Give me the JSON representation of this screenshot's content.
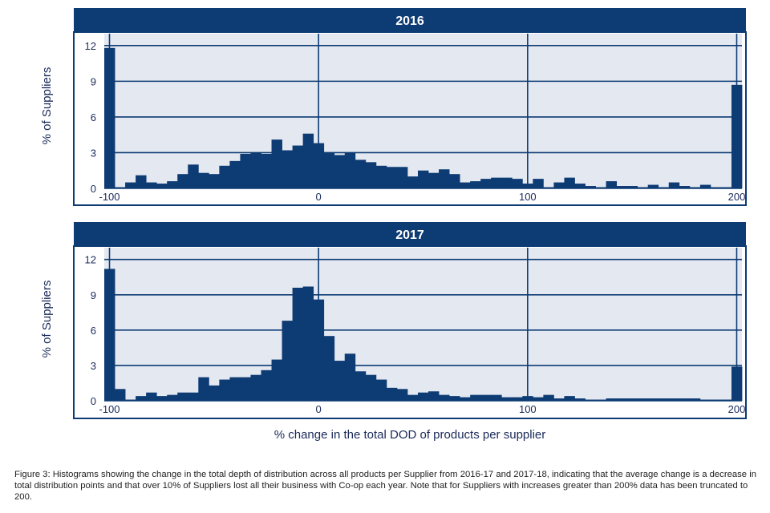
{
  "colors": {
    "bar": "#0d3b73",
    "title_bg": "#0d3b73",
    "plot_bg": "#e4e8f1",
    "grid": "#0d3b73",
    "text": "#1a2a5a"
  },
  "chart_data": [
    {
      "type": "bar",
      "title": "2016",
      "xlabel": "% change in the total DOD of products per supplier",
      "ylabel": "% of Suppliers",
      "xlim": [
        -102.5,
        202.5
      ],
      "ylim": [
        0,
        13
      ],
      "bin_width": 5,
      "xticks": [
        -100,
        0,
        100,
        200
      ],
      "yticks": [
        0,
        3,
        6,
        9,
        12
      ],
      "x": [
        -100,
        -95,
        -90,
        -85,
        -80,
        -75,
        -70,
        -65,
        -60,
        -55,
        -50,
        -45,
        -40,
        -35,
        -30,
        -25,
        -20,
        -15,
        -10,
        -5,
        0,
        5,
        10,
        15,
        20,
        25,
        30,
        35,
        40,
        45,
        50,
        55,
        60,
        65,
        70,
        75,
        80,
        85,
        90,
        95,
        100,
        105,
        110,
        115,
        120,
        125,
        130,
        135,
        140,
        145,
        150,
        155,
        160,
        165,
        170,
        175,
        180,
        185,
        190,
        195,
        200
      ],
      "values": [
        11.8,
        0.1,
        0.5,
        1.1,
        0.5,
        0.4,
        0.6,
        1.2,
        2.0,
        1.3,
        1.2,
        1.9,
        2.3,
        2.9,
        3.0,
        2.9,
        4.1,
        3.2,
        3.6,
        4.6,
        3.8,
        3.0,
        2.8,
        3.0,
        2.4,
        2.2,
        1.9,
        1.8,
        1.8,
        1.0,
        1.5,
        1.3,
        1.6,
        1.2,
        0.5,
        0.6,
        0.8,
        0.9,
        0.9,
        0.8,
        0.4,
        0.8,
        0.1,
        0.5,
        0.9,
        0.4,
        0.2,
        0.1,
        0.6,
        0.2,
        0.2,
        0.1,
        0.3,
        0.1,
        0.5,
        0.2,
        0.1,
        0.3,
        0.1,
        0.1,
        8.7
      ]
    },
    {
      "type": "bar",
      "title": "2017",
      "xlabel": "% change in the total DOD of products per supplier",
      "ylabel": "% of Suppliers",
      "xlim": [
        -102.5,
        202.5
      ],
      "ylim": [
        0,
        13
      ],
      "bin_width": 5,
      "xticks": [
        -100,
        0,
        100,
        200
      ],
      "yticks": [
        0,
        3,
        6,
        9,
        12
      ],
      "x": [
        -100,
        -95,
        -90,
        -85,
        -80,
        -75,
        -70,
        -65,
        -60,
        -55,
        -50,
        -45,
        -40,
        -35,
        -30,
        -25,
        -20,
        -15,
        -10,
        -5,
        0,
        5,
        10,
        15,
        20,
        25,
        30,
        35,
        40,
        45,
        50,
        55,
        60,
        65,
        70,
        75,
        80,
        85,
        90,
        95,
        100,
        105,
        110,
        115,
        120,
        125,
        130,
        135,
        140,
        145,
        150,
        155,
        160,
        165,
        170,
        175,
        180,
        185,
        190,
        195,
        200
      ],
      "values": [
        11.2,
        1.0,
        0.1,
        0.4,
        0.7,
        0.4,
        0.5,
        0.7,
        0.7,
        2.0,
        1.3,
        1.8,
        2.0,
        2.0,
        2.2,
        2.6,
        3.5,
        6.8,
        9.6,
        9.7,
        8.6,
        5.5,
        3.4,
        4.0,
        2.5,
        2.2,
        1.8,
        1.1,
        1.0,
        0.5,
        0.7,
        0.8,
        0.5,
        0.4,
        0.3,
        0.5,
        0.5,
        0.5,
        0.3,
        0.3,
        0.4,
        0.3,
        0.5,
        0.2,
        0.4,
        0.2,
        0.1,
        0.1,
        0.2,
        0.2,
        0.2,
        0.2,
        0.2,
        0.2,
        0.2,
        0.2,
        0.2,
        0.1,
        0.1,
        0.1,
        2.9
      ]
    }
  ],
  "caption": "Figure 3: Histograms showing the change in the total depth of distribution across all products per Supplier from 2016-17 and 2017-18, indicating that the average change is a decrease in total distribution points and that over 10% of Suppliers lost all their business with Co-op each year. Note that for Suppliers with increases greater than 200% data has been truncated to 200."
}
